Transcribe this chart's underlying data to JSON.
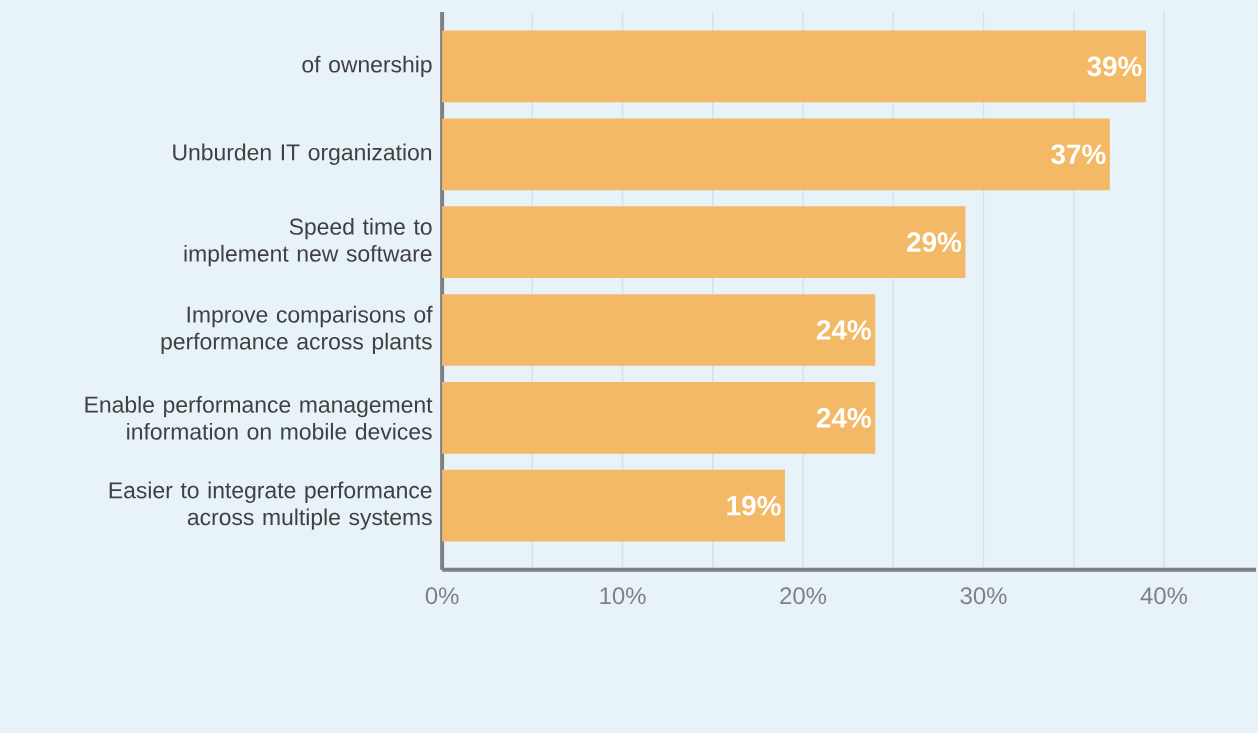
{
  "chart_data": {
    "type": "bar",
    "orientation": "horizontal",
    "categories": [
      "of ownership",
      "Unburden IT organization",
      "Speed time to implement new software",
      "Improve comparisons of performance across plants",
      "Enable performance management information on mobile devices",
      "Easier to integrate performance across multiple systems"
    ],
    "values": [
      39,
      37,
      29,
      24,
      24,
      19
    ],
    "value_labels": [
      "39%",
      "37%",
      "29%",
      "24%",
      "24%",
      "19%"
    ],
    "color": "#f3b966",
    "xlim": [
      0,
      45.1
    ],
    "xticks": [
      {
        "value": 0,
        "label": "0%"
      },
      {
        "value": 10,
        "label": "10%"
      },
      {
        "value": 20,
        "label": "20%"
      },
      {
        "value": 30,
        "label": "30%"
      },
      {
        "value": 40,
        "label": "40%"
      }
    ],
    "grid": "x"
  }
}
